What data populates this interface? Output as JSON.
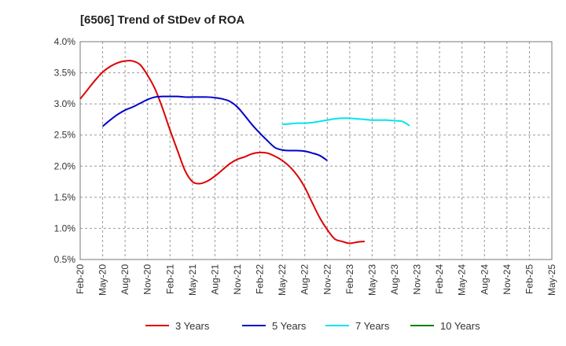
{
  "chart_data": {
    "type": "line",
    "title": "[6506]  Trend of StDev of ROA",
    "xlabel": "",
    "ylabel": "",
    "ylim": [
      0.5,
      4.0
    ],
    "yticks": [
      "0.5%",
      "1.0%",
      "1.5%",
      "2.0%",
      "2.5%",
      "3.0%",
      "3.5%",
      "4.0%"
    ],
    "ytick_values": [
      0.5,
      1.0,
      1.5,
      2.0,
      2.5,
      3.0,
      3.5,
      4.0
    ],
    "xticks": [
      "Feb-20",
      "May-20",
      "Aug-20",
      "Nov-20",
      "Feb-21",
      "May-21",
      "Aug-21",
      "Nov-21",
      "Feb-22",
      "May-22",
      "Aug-22",
      "Nov-22",
      "Feb-23",
      "May-23",
      "Aug-23",
      "Nov-23",
      "Feb-24",
      "May-24",
      "Aug-24",
      "Nov-24",
      "Feb-25",
      "May-25"
    ],
    "grid": true,
    "legend_position": "bottom",
    "series": [
      {
        "name": "3 Years",
        "color": "#dd0000",
        "start_index": 0,
        "values": [
          3.08,
          3.23,
          3.38,
          3.51,
          3.6,
          3.66,
          3.69,
          3.69,
          3.63,
          3.46,
          3.24,
          2.93,
          2.58,
          2.25,
          1.93,
          1.75,
          1.72,
          1.76,
          1.84,
          1.94,
          2.04,
          2.11,
          2.15,
          2.2,
          2.22,
          2.21,
          2.16,
          2.09,
          1.99,
          1.85,
          1.66,
          1.41,
          1.17,
          0.98,
          0.83,
          0.79,
          0.76,
          0.78,
          0.79
        ]
      },
      {
        "name": "5 Years",
        "color": "#0000cc",
        "start_index": 3,
        "values": [
          2.64,
          2.74,
          2.83,
          2.9,
          2.95,
          3.01,
          3.07,
          3.11,
          3.12,
          3.12,
          3.12,
          3.11,
          3.11,
          3.11,
          3.11,
          3.1,
          3.08,
          3.04,
          2.95,
          2.81,
          2.66,
          2.53,
          2.41,
          2.3,
          2.26,
          2.25,
          2.25,
          2.24,
          2.21,
          2.17,
          2.09
        ]
      },
      {
        "name": "7 Years",
        "color": "#00e5ee",
        "start_index": 27,
        "values": [
          2.67,
          2.68,
          2.69,
          2.69,
          2.7,
          2.72,
          2.74,
          2.76,
          2.77,
          2.77,
          2.76,
          2.75,
          2.74,
          2.74,
          2.74,
          2.73,
          2.72,
          2.65
        ]
      },
      {
        "name": "10 Years",
        "color": "#008000",
        "start_index": 0,
        "values": []
      }
    ]
  }
}
